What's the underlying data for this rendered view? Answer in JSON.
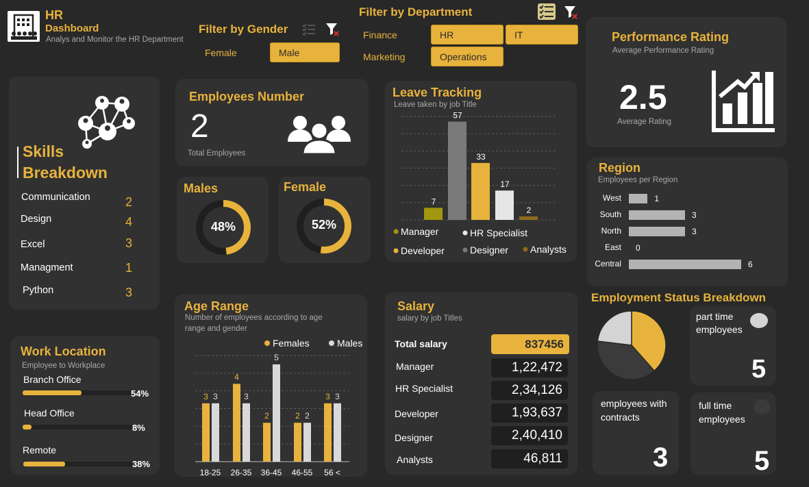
{
  "header": {
    "title": "HR",
    "subtitle": "Dashboard",
    "tagline": "Analys and Monitor the HR Department"
  },
  "gender_filter": {
    "label": "Filter by Gender",
    "options": [
      "Female",
      "Male"
    ],
    "selected": "Male"
  },
  "department_filter": {
    "label": "Filter by Department",
    "options": [
      "Finance",
      "HR",
      "IT",
      "Marketing",
      "Operations"
    ],
    "selected": [
      "HR",
      "IT",
      "Operations"
    ]
  },
  "skills": {
    "title_line1": "Skills",
    "title_line2": "Breakdown",
    "items": [
      {
        "name": "Communication",
        "value": "2"
      },
      {
        "name": "Design",
        "value": "4"
      },
      {
        "name": "Excel",
        "value": "3"
      },
      {
        "name": "Managment",
        "value": "1"
      },
      {
        "name": "Python",
        "value": "3"
      }
    ]
  },
  "employees": {
    "title": "Employees Number",
    "value": "2",
    "caption": "Total Employees"
  },
  "males": {
    "title": "Males",
    "percent_label": "48%",
    "percent": 48
  },
  "female": {
    "title": "Female",
    "percent_label": "52%",
    "percent": 52
  },
  "performance": {
    "title": "Performance Rating",
    "subtitle": "Average Performance  Rating",
    "value": "2.5",
    "caption": "Average Rating"
  },
  "leave": {
    "title": "Leave Tracking",
    "subtitle": "Leave taken by job Title"
  },
  "region": {
    "title": "Region",
    "subtitle": "Employees per Region"
  },
  "work_location": {
    "title": "Work Location",
    "subtitle": "Employee to Workplace",
    "items": [
      {
        "name": "Branch Office",
        "label": "54%",
        "fraction": 0.54
      },
      {
        "name": "Head Office",
        "label": "8%",
        "fraction": 0.08
      },
      {
        "name": "Remote",
        "label": "38%",
        "fraction": 0.38
      }
    ]
  },
  "age": {
    "title": "Age Range",
    "subtitle_line1": "Number of employees according to age",
    "subtitle_line2": "range and gender"
  },
  "salary": {
    "title": "Salary",
    "subtitle": "salary by job Titles",
    "total_label": "Total salary",
    "total_value": "837456",
    "rows": [
      {
        "label": "Manager",
        "value": "1,22,472"
      },
      {
        "label": "HR Specialist",
        "value": "2,34,126"
      },
      {
        "label": "Developer",
        "value": "1,93,637"
      },
      {
        "label": "Designer",
        "value": "2,40,410"
      },
      {
        "label": "Analysts",
        "value": "46,811"
      }
    ]
  },
  "employment": {
    "title": "Employment Status Breakdown",
    "part_time_label": "part time employees",
    "part_time_value": "5",
    "contracts_label": "employees with contracts",
    "contracts_value": "3",
    "full_time_label": "full time employees",
    "full_time_value": "5"
  },
  "colors": {
    "accent": "#e8b33c",
    "background": "#282828",
    "card": "#313131"
  },
  "icons": [
    "building-icon",
    "checklist-icon",
    "clear-filter-icon",
    "network-people-icon",
    "people-group-icon",
    "growth-chart-icon"
  ],
  "chart_data": [
    {
      "type": "bar",
      "title": "Leave Tracking",
      "subtitle": "Leave taken by job Title",
      "categories": [
        "Manager",
        "HR Specialist",
        "Developer",
        "Designer",
        "Analysts"
      ],
      "order": [
        "Manager",
        "Designer",
        "Developer",
        "HR Specialist",
        "Analysts"
      ],
      "values": [
        7,
        17,
        33,
        57,
        2
      ],
      "colors": [
        "#a39611",
        "#e6e6e6",
        "#e8b33c",
        "#7a7a7a",
        "#8c6a1c"
      ],
      "ylim": [
        0,
        60
      ],
      "legend": "bottom"
    },
    {
      "type": "bar",
      "orientation": "horizontal",
      "title": "Region",
      "subtitle": "Employees per Region",
      "categories": [
        "West",
        "South",
        "North",
        "East",
        "Central"
      ],
      "values": [
        1,
        3,
        3,
        0,
        6
      ],
      "xlim": [
        0,
        6
      ]
    },
    {
      "type": "bar",
      "title": "Age Range",
      "categories": [
        "18-25",
        "26-35",
        "36-45",
        "46-55",
        "56 <"
      ],
      "series": [
        {
          "name": "Females",
          "values": [
            3,
            4,
            2,
            2,
            3
          ],
          "color": "#e8b33c"
        },
        {
          "name": "Males",
          "values": [
            3,
            3,
            5,
            2,
            3
          ],
          "color": "#d9d9d9"
        }
      ],
      "ylim": [
        0,
        5
      ],
      "legend": "top-right"
    },
    {
      "type": "pie",
      "title": "Employment Status Breakdown",
      "categories": [
        "part time employees",
        "full time employees",
        "employees with contracts"
      ],
      "values": [
        5,
        5,
        3
      ],
      "colors": [
        "#e8b33c",
        "#3b3b3b",
        "#d4d4d4"
      ]
    }
  ]
}
